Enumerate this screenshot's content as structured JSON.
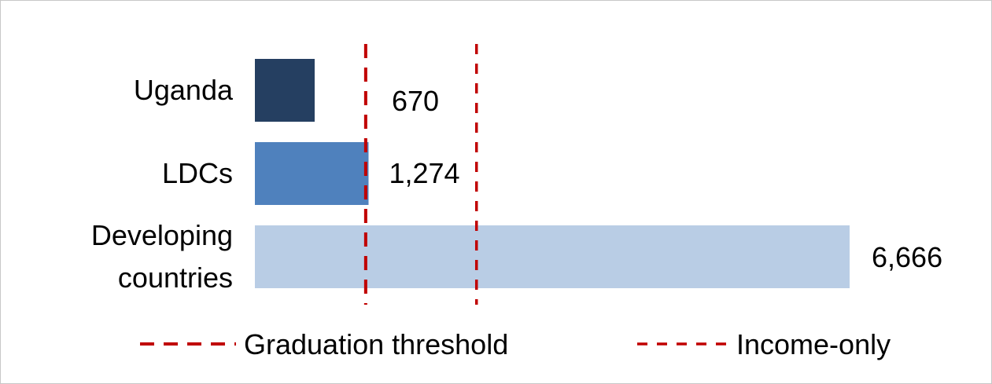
{
  "chart_data": {
    "type": "bar",
    "orientation": "horizontal",
    "categories": [
      {
        "lines": [
          "Uganda"
        ]
      },
      {
        "lines": [
          "LDCs"
        ]
      },
      {
        "lines": [
          "Developing",
          "countries"
        ]
      }
    ],
    "values": [
      670,
      1274,
      6666
    ],
    "value_labels": [
      "670",
      "1,274",
      "6,666"
    ],
    "bar_colors": [
      "#253F61",
      "#4F81BD",
      "#B9CDE5"
    ],
    "xlim": [
      0,
      7000
    ],
    "grid": false,
    "legend_position": "bottom",
    "reference_lines": [
      {
        "name": "Graduation threshold",
        "value": 1242,
        "color": "#C00000"
      },
      {
        "name": "Income-only",
        "value": 2484,
        "color": "#C00000"
      }
    ]
  }
}
